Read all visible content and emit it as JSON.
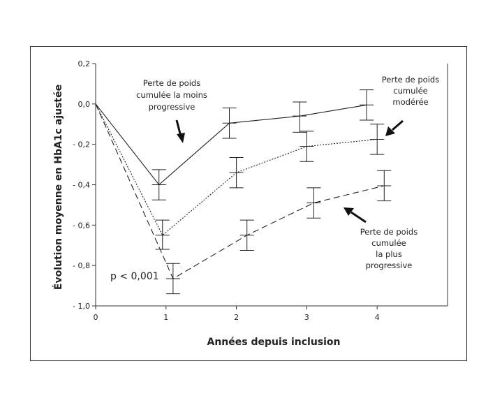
{
  "chart_data": {
    "type": "line",
    "xlabel": "Années depuis inclusion",
    "ylabel": "Évolution moyenne en HbA1c ajustée",
    "xlim": [
      0,
      5
    ],
    "ylim": [
      -1.0,
      0.2
    ],
    "xticks": [
      0,
      1,
      2,
      3,
      4
    ],
    "xtick_labels": [
      "0",
      "1",
      "2",
      "3",
      "4"
    ],
    "yticks": [
      0.2,
      0.0,
      -0.2,
      -0.4,
      -0.6,
      -0.8,
      -1.0
    ],
    "ytick_labels": [
      "0,2",
      "0,0",
      "- 0,2",
      "- 0,4",
      "- 0,6",
      "- 0,8",
      "- 1,0"
    ],
    "grid": false,
    "series": [
      {
        "style": "solid",
        "color": "#222222",
        "x": [
          0,
          0.9,
          1.9,
          2.9,
          3.85
        ],
        "y": [
          0.0,
          -0.4,
          -0.095,
          -0.06,
          -0.005
        ],
        "err_low": [
          null,
          -0.475,
          -0.17,
          -0.14,
          -0.08
        ],
        "err_high": [
          null,
          -0.325,
          -0.02,
          0.01,
          0.07
        ]
      },
      {
        "style": "dotted",
        "color": "#222222",
        "x": [
          0,
          0.95,
          2.0,
          3.0,
          4.0
        ],
        "y": [
          0.0,
          -0.65,
          -0.34,
          -0.21,
          -0.175
        ],
        "err_low": [
          null,
          -0.72,
          -0.415,
          -0.285,
          -0.25
        ],
        "err_high": [
          null,
          -0.575,
          -0.265,
          -0.135,
          -0.1
        ]
      },
      {
        "style": "dashed",
        "color": "#222222",
        "x": [
          0,
          1.1,
          2.15,
          3.1,
          4.1
        ],
        "y": [
          0.0,
          -0.865,
          -0.65,
          -0.49,
          -0.405
        ],
        "err_low": [
          null,
          -0.94,
          -0.725,
          -0.565,
          -0.48
        ],
        "err_high": [
          null,
          -0.79,
          -0.575,
          -0.415,
          -0.33
        ]
      }
    ],
    "annotations": {
      "least": [
        "Perte de poids",
        "cumulée la moins",
        "progressive"
      ],
      "moderate": [
        "Perte de poids",
        "cumulée",
        "modérée"
      ],
      "most": [
        "Perte de poids",
        "cumulée",
        "la plus",
        "progressive"
      ],
      "pvalue": "p < 0,001"
    }
  }
}
